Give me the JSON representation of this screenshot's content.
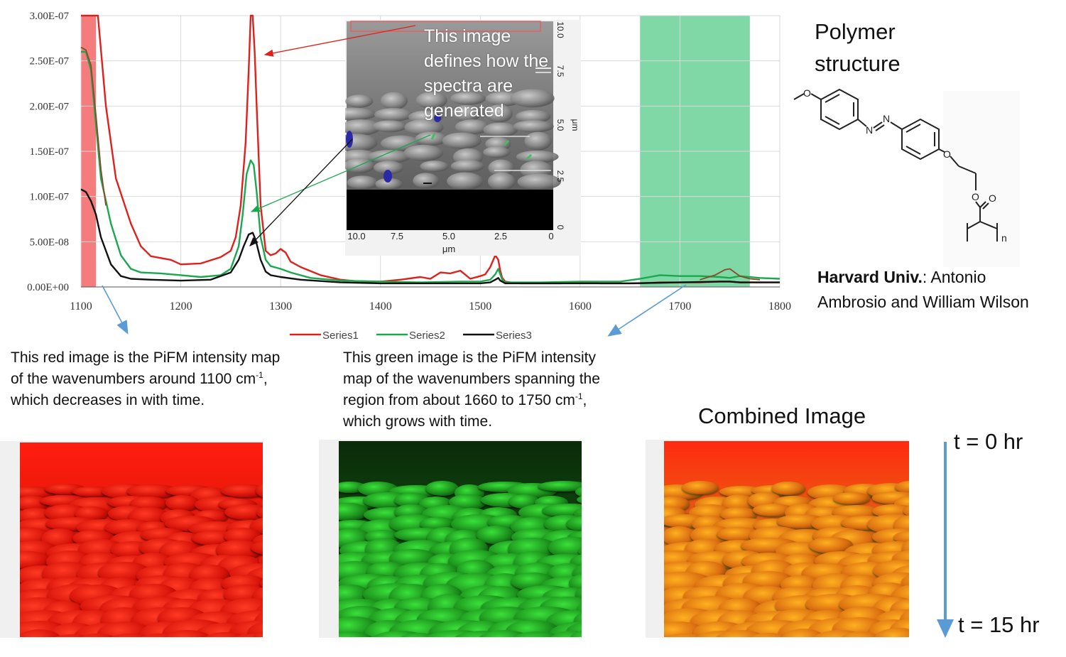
{
  "chart_data": {
    "type": "line",
    "xlim": [
      1100,
      1800
    ],
    "ylim": [
      0,
      3e-07
    ],
    "x_ticks": [
      "1100",
      "1200",
      "1300",
      "1400",
      "1500",
      "1600",
      "1700",
      "1800"
    ],
    "y_ticks": [
      "0.00E+00",
      "5.00E-08",
      "1.00E-07",
      "1.50E-07",
      "2.00E-07",
      "2.50E-07",
      "3.00E-07"
    ],
    "grid": "vertical-and-horizontal",
    "legend_position": "bottom",
    "highlight_bands": [
      {
        "from": 1100,
        "to": 1115,
        "color": "#f47c7c"
      },
      {
        "from": 1660,
        "to": 1770,
        "color": "#7fd8a6"
      }
    ],
    "series": [
      {
        "name": "Series1",
        "color": "#e0201c",
        "x": [
          1100,
          1110,
          1117,
          1125,
          1135,
          1150,
          1160,
          1170,
          1180,
          1190,
          1200,
          1220,
          1240,
          1250,
          1255,
          1260,
          1265,
          1268,
          1270,
          1272,
          1274,
          1276,
          1280,
          1285,
          1290,
          1295,
          1300,
          1305,
          1310,
          1320,
          1340,
          1360,
          1380,
          1400,
          1420,
          1440,
          1450,
          1460,
          1470,
          1480,
          1490,
          1500,
          1505,
          1510,
          1515,
          1518,
          1520,
          1522,
          1525,
          1530,
          1540,
          1560,
          1580,
          1600,
          1620,
          1640,
          1660,
          1680,
          1700,
          1720,
          1740,
          1750,
          1760,
          1780,
          1800
        ],
        "y": [
          3e-07,
          3e-07,
          3e-07,
          2e-07,
          1.2e-07,
          7e-08,
          4.5e-08,
          3.4e-08,
          3.2e-08,
          3e-08,
          2.5e-08,
          2.6e-08,
          3.3e-08,
          4e-08,
          5.5e-08,
          9e-08,
          1.6e-07,
          2.4e-07,
          3e-07,
          3e-07,
          2.6e-07,
          2e-07,
          9e-08,
          4e-08,
          3.5e-08,
          3.7e-08,
          4.2e-08,
          3.8e-08,
          2.8e-08,
          2.2e-08,
          1.3e-08,
          8e-09,
          6e-09,
          6e-09,
          8e-09,
          1.1e-08,
          9e-09,
          1.6e-08,
          1.5e-08,
          1.8e-08,
          9e-09,
          1.2e-08,
          1.4e-08,
          2.2e-08,
          3.5e-08,
          3e-08,
          1.8e-08,
          1e-08,
          6e-09,
          5e-09,
          4e-09,
          4e-09,
          4e-09,
          5e-09,
          4e-09,
          4e-09,
          4e-09,
          5e-09,
          5e-09,
          5e-09,
          6e-09,
          6e-09,
          5e-09,
          5e-09,
          5e-09
        ]
      },
      {
        "name": "Series2",
        "color": "#1aa84f",
        "x": [
          1100,
          1105,
          1110,
          1115,
          1120,
          1130,
          1140,
          1150,
          1160,
          1180,
          1200,
          1220,
          1240,
          1250,
          1258,
          1262,
          1266,
          1270,
          1273,
          1276,
          1280,
          1285,
          1290,
          1300,
          1310,
          1330,
          1360,
          1400,
          1440,
          1480,
          1500,
          1510,
          1515,
          1518,
          1520,
          1522,
          1525,
          1530,
          1560,
          1600,
          1640,
          1660,
          1680,
          1700,
          1720,
          1740,
          1750,
          1760,
          1780,
          1800
        ],
        "y": [
          2.6e-07,
          2.6e-07,
          2.4e-07,
          1.8e-07,
          1.2e-07,
          7e-08,
          3.5e-08,
          2e-08,
          1.6e-08,
          1.5e-08,
          1.3e-08,
          1.1e-08,
          1.3e-08,
          2e-08,
          4.5e-08,
          8e-08,
          1.25e-07,
          1.4e-07,
          1.35e-07,
          1.05e-07,
          5.5e-08,
          3e-08,
          2.3e-08,
          2e-08,
          1.6e-08,
          1e-08,
          7e-09,
          6e-09,
          5e-09,
          6e-09,
          6e-09,
          8e-09,
          1.4e-08,
          2e-08,
          1.4e-08,
          8e-09,
          5e-09,
          5e-09,
          5e-09,
          6e-09,
          6e-09,
          9e-09,
          1.3e-08,
          1.2e-08,
          1.2e-08,
          1.1e-08,
          1e-08,
          1.2e-08,
          1e-08,
          9e-09
        ]
      },
      {
        "name": "Series3",
        "color": "#111111",
        "x": [
          1100,
          1105,
          1110,
          1115,
          1120,
          1130,
          1140,
          1150,
          1170,
          1200,
          1230,
          1250,
          1258,
          1263,
          1268,
          1272,
          1275,
          1280,
          1285,
          1290,
          1300,
          1320,
          1360,
          1400,
          1450,
          1500,
          1510,
          1515,
          1518,
          1520,
          1525,
          1530,
          1560,
          1600,
          1650,
          1700,
          1740,
          1750,
          1760,
          1780,
          1800
        ],
        "y": [
          1.08e-07,
          1.05e-07,
          9.5e-08,
          8e-08,
          5.5e-08,
          2.5e-08,
          1.2e-08,
          9e-09,
          8e-09,
          7e-09,
          8e-09,
          1.6e-08,
          3e-08,
          4.5e-08,
          5.8e-08,
          6e-08,
          5.2e-08,
          3e-08,
          1.7e-08,
          1.3e-08,
          1.1e-08,
          8e-09,
          5e-09,
          4e-09,
          4e-09,
          4e-09,
          5e-09,
          8e-09,
          1e-08,
          7e-09,
          4e-09,
          4e-09,
          4e-09,
          4e-09,
          4e-09,
          5e-09,
          6e-09,
          6e-09,
          5e-09,
          5e-09,
          5e-09
        ]
      },
      {
        "color": "#8b4a2b",
        "x": [
          1100,
          1105,
          1110,
          1115,
          1120,
          1125
        ],
        "y": [
          2.65e-07,
          2.62e-07,
          2.45e-07,
          1.9e-07,
          1.3e-07,
          9e-08
        ]
      },
      {
        "color": "#8b4a2b",
        "x": [
          1720,
          1735,
          1745,
          1750,
          1755,
          1760,
          1770,
          1780
        ],
        "y": [
          8e-09,
          1.3e-08,
          1.9e-08,
          2e-08,
          1.6e-08,
          1.2e-08,
          9e-09,
          8e-09
        ]
      }
    ]
  },
  "inset": {
    "overlay_text": "This image defines how the spectra are generated",
    "x_ticks": [
      "10.0",
      "7.5",
      "5.0",
      "2.5",
      "0"
    ],
    "x_unit": "μm",
    "y_ticks": [
      "10.0",
      "7.5",
      "5.0",
      "2.5",
      "0"
    ],
    "y_unit": "μm"
  },
  "captions": {
    "red_part1": "This red image is the PiFM intensity map of the wavenumbers around 1100 cm",
    "red_sup": "-1",
    "red_part2": ", which decreases in with time.",
    "green_part1": "This green image is the PiFM intensity map of the wavenumbers spanning the region from about 1660 to 1750 cm",
    "green_sup": "-1",
    "green_part2": ", which grows with time."
  },
  "right_panel": {
    "title": "Polymer structure",
    "author_bold": "Harvard Univ.",
    "author_rest": ": Antonio Ambrosio and William Wilson",
    "structure_labels": [
      "O",
      "N",
      "N",
      "O",
      "O",
      "O",
      "n"
    ]
  },
  "combined_title": "Combined Image",
  "time": {
    "start": "t = 0 hr",
    "end": "t = 15 hr"
  },
  "colors": {
    "red_band": "#f47c7c",
    "green_band": "#7fd8a6",
    "annot_blue": "#5b9bd5"
  }
}
